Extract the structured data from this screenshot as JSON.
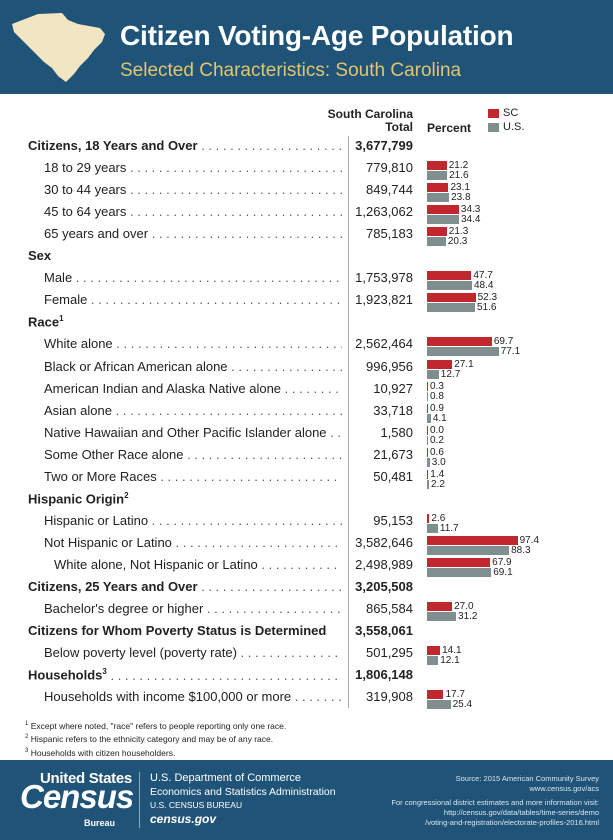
{
  "header": {
    "title": "Citizen Voting-Age Population",
    "subtitle": "Selected Characteristics: South Carolina"
  },
  "columns": {
    "total_line1": "South Carolina",
    "total_line2": "Total",
    "percent": "Percent"
  },
  "legend": {
    "sc": "SC",
    "us": "U.S."
  },
  "colors": {
    "sc": "#c1272d",
    "us": "#7f8f8f",
    "header": "#1f5478",
    "subtitle": "#e3c56d"
  },
  "chart_data": {
    "type": "bar",
    "orientation": "horizontal",
    "xlim": [
      0,
      100
    ],
    "series": [
      {
        "name": "SC",
        "color": "#c1272d"
      },
      {
        "name": "U.S.",
        "color": "#7f8f8f"
      }
    ],
    "rows": [
      {
        "label": "Citizens, 18 Years and Over",
        "level": 0,
        "total": "3,677,799"
      },
      {
        "label": "18 to 29 years",
        "level": 1,
        "total": "779,810",
        "sc": 21.2,
        "us": 21.6
      },
      {
        "label": "30 to 44 years",
        "level": 1,
        "total": "849,744",
        "sc": 23.1,
        "us": 23.8
      },
      {
        "label": "45 to 64 years",
        "level": 1,
        "total": "1,263,062",
        "sc": 34.3,
        "us": 34.4
      },
      {
        "label": "65 years and over",
        "level": 1,
        "total": "785,183",
        "sc": 21.3,
        "us": 20.3
      },
      {
        "label": "Sex",
        "level": 0,
        "nodots": true
      },
      {
        "label": "Male",
        "level": 1,
        "total": "1,753,978",
        "sc": 47.7,
        "us": 48.4
      },
      {
        "label": "Female",
        "level": 1,
        "total": "1,923,821",
        "sc": 52.3,
        "us": 51.6
      },
      {
        "label": "Race",
        "level": 0,
        "sup": "1",
        "nodots": true
      },
      {
        "label": "White alone",
        "level": 1,
        "total": "2,562,464",
        "sc": 69.7,
        "us": 77.1
      },
      {
        "label": "Black or African American alone",
        "level": 1,
        "total": "996,956",
        "sc": 27.1,
        "us": 12.7
      },
      {
        "label": "American Indian and Alaska Native alone",
        "level": 1,
        "total": "10,927",
        "sc": 0.3,
        "us": 0.8
      },
      {
        "label": "Asian alone",
        "level": 1,
        "total": "33,718",
        "sc": 0.9,
        "us": 4.1
      },
      {
        "label": "Native Hawaiian and Other Pacific Islander alone",
        "level": 1,
        "total": "1,580",
        "sc": 0.0,
        "us": 0.2,
        "sc_text": "0.0"
      },
      {
        "label": "Some Other Race alone",
        "level": 1,
        "total": "21,673",
        "sc": 0.6,
        "us": 3.0,
        "us_text": "3.0"
      },
      {
        "label": "Two or More Races",
        "level": 1,
        "total": "50,481",
        "sc": 1.4,
        "us": 2.2
      },
      {
        "label": "Hispanic Origin",
        "level": 0,
        "sup": "2",
        "nodots": true
      },
      {
        "label": "Hispanic or Latino",
        "level": 1,
        "total": "95,153",
        "sc": 2.6,
        "us": 11.7
      },
      {
        "label": "Not Hispanic or Latino",
        "level": 1,
        "total": "3,582,646",
        "sc": 97.4,
        "us": 88.3
      },
      {
        "label": "White alone, Not Hispanic or Latino",
        "level": 2,
        "total": "2,498,989",
        "sc": 67.9,
        "us": 69.1
      },
      {
        "label": "Citizens, 25 Years and Over",
        "level": 0,
        "total": "3,205,508"
      },
      {
        "label": "Bachelor's degree or higher",
        "level": 1,
        "total": "865,584",
        "sc": 27.0,
        "us": 31.2,
        "sc_text": "27.0"
      },
      {
        "label": "Citizens for Whom Poverty Status is Determined",
        "level": 0,
        "total": "3,558,061",
        "nodots": true
      },
      {
        "label": "Below poverty level (poverty rate)",
        "level": 1,
        "total": "501,295",
        "sc": 14.1,
        "us": 12.1
      },
      {
        "label": "Households",
        "level": 0,
        "sup": "3",
        "total": "1,806,148"
      },
      {
        "label": "Households with income $100,000 or more",
        "level": 1,
        "total": "319,908",
        "sc": 17.7,
        "us": 25.4
      }
    ]
  },
  "footnotes": [
    {
      "num": "1",
      "text": "Except where noted, \"race\" refers to people reporting only one race."
    },
    {
      "num": "2",
      "text": "Hispanic refers to the ethnicity category and may be of any race."
    },
    {
      "num": "3",
      "text": "Households with citizen householders."
    }
  ],
  "footer": {
    "logo_top": "United States",
    "logo_main": "Census",
    "logo_sub": "Bureau",
    "dept": "U.S. Department of Commerce",
    "econ": "Economics and Statistics Administration",
    "bureau": "U.S. CENSUS BUREAU",
    "site": "census.gov",
    "source": "Source: 2015 American Community Survey",
    "source_url": "www.census.gov/acs",
    "more_info": "For congressional district estimates and more information visit:",
    "more_url1": "http://census.gov/data/tables/time-series/demo",
    "more_url2": "/voting-and-registration/electorate-profiles-2016.html"
  }
}
